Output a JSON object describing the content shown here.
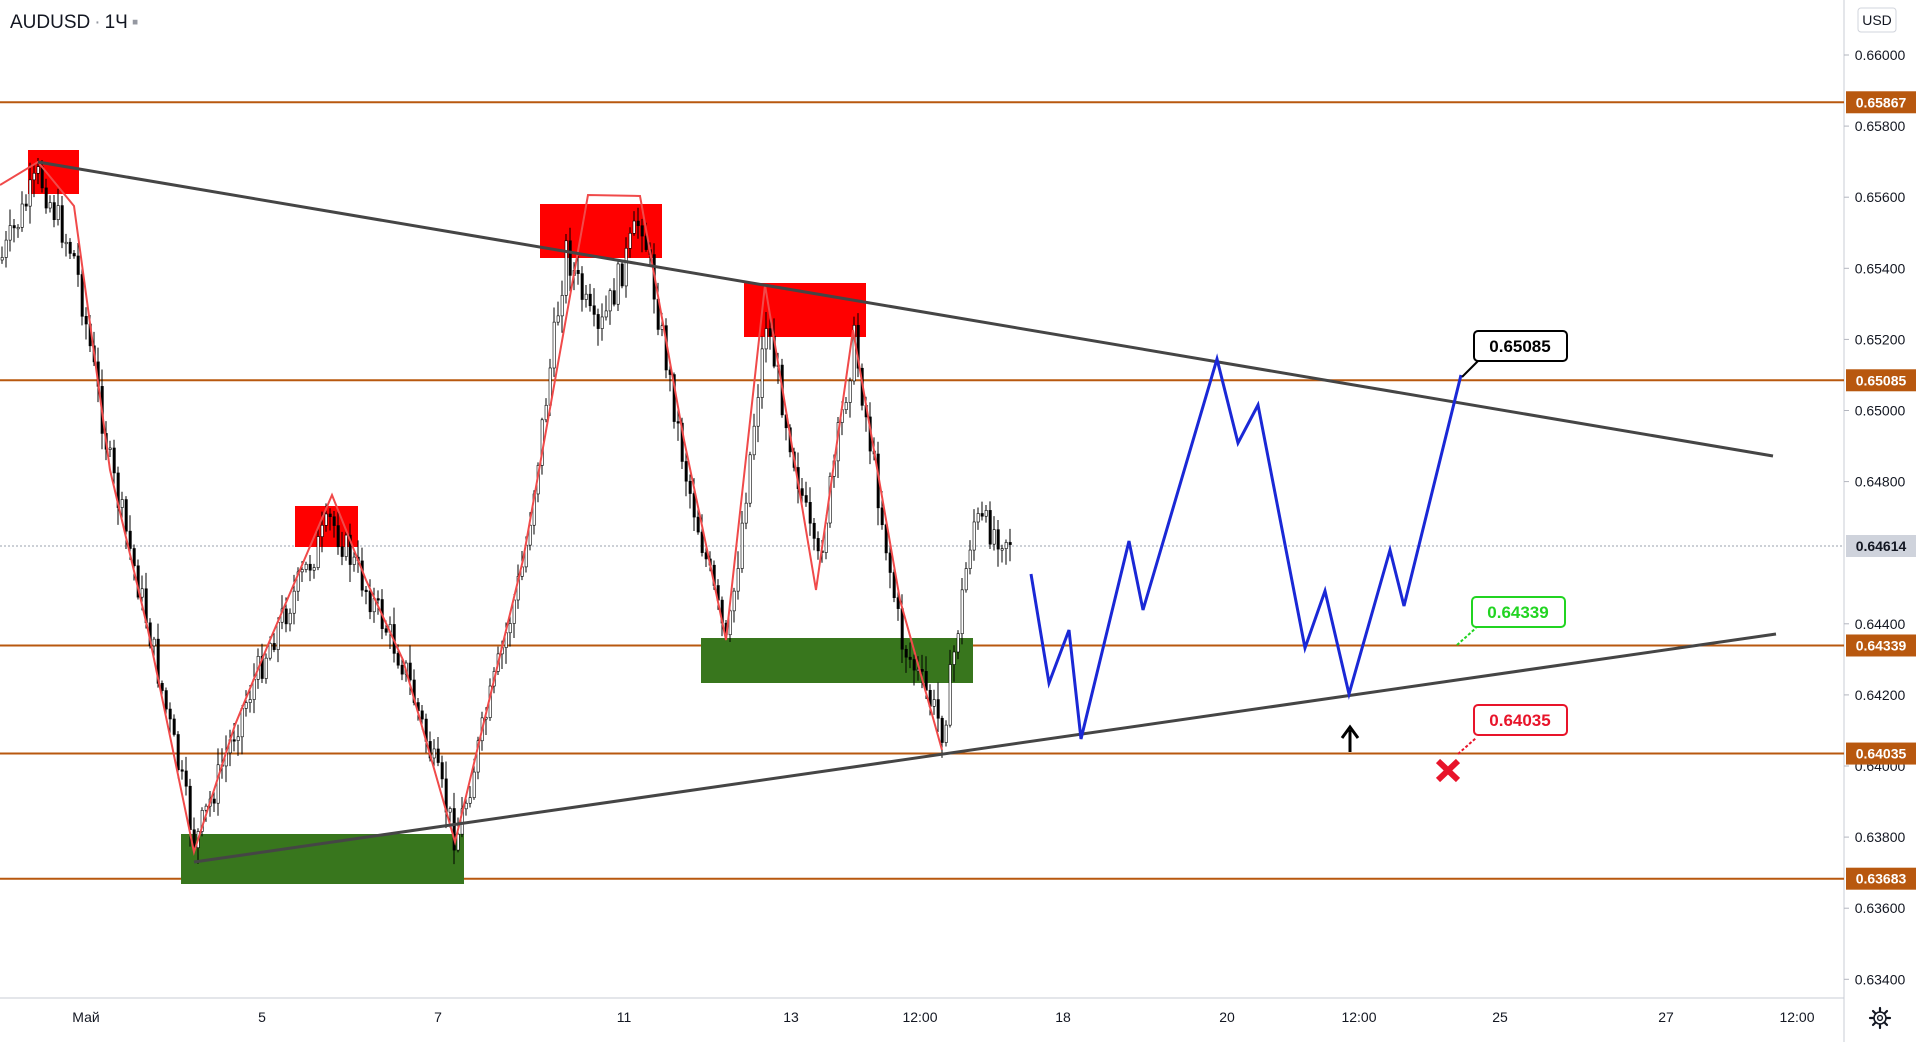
{
  "header": {
    "symbol": "AUDUSD",
    "separator": "·",
    "timeframe": "1Ч",
    "more": "▪"
  },
  "currency": "USD",
  "price_axis": {
    "ticks": [
      "0.66000",
      "0.65800",
      "0.65600",
      "0.65400",
      "0.65200",
      "0.65000",
      "0.64800",
      "0.64400",
      "0.64200",
      "0.64000",
      "0.63800",
      "0.63600",
      "0.63400"
    ]
  },
  "time_axis": {
    "labels": [
      "Май",
      "5",
      "7",
      "11",
      "13",
      "12:00",
      "18",
      "20",
      "12:00",
      "25",
      "27",
      "12:00"
    ]
  },
  "levels": [
    {
      "value": "0.65867",
      "color": "#b8580f"
    },
    {
      "value": "0.65085",
      "color": "#b8580f"
    },
    {
      "value": "0.64339",
      "color": "#b8580f"
    },
    {
      "value": "0.64035",
      "color": "#b8580f"
    },
    {
      "value": "0.63683",
      "color": "#b8580f"
    }
  ],
  "current_price": {
    "value": "0.64614"
  },
  "callouts": [
    {
      "value": "0.65085",
      "color": "#000000"
    },
    {
      "value": "0.64339",
      "color": "#21d421"
    },
    {
      "value": "0.64035",
      "color": "#e8142a"
    }
  ],
  "colors": {
    "trendline": "#454545",
    "zigzag": "#f04a4a",
    "projection": "#1a28d6",
    "supply_zone": "#ff0000",
    "demand_zone": "#38761d",
    "level": "#b8580f"
  },
  "icons": {
    "target": "arrow-up-icon",
    "stop": "cross-icon",
    "settings": "gear-icon"
  }
}
